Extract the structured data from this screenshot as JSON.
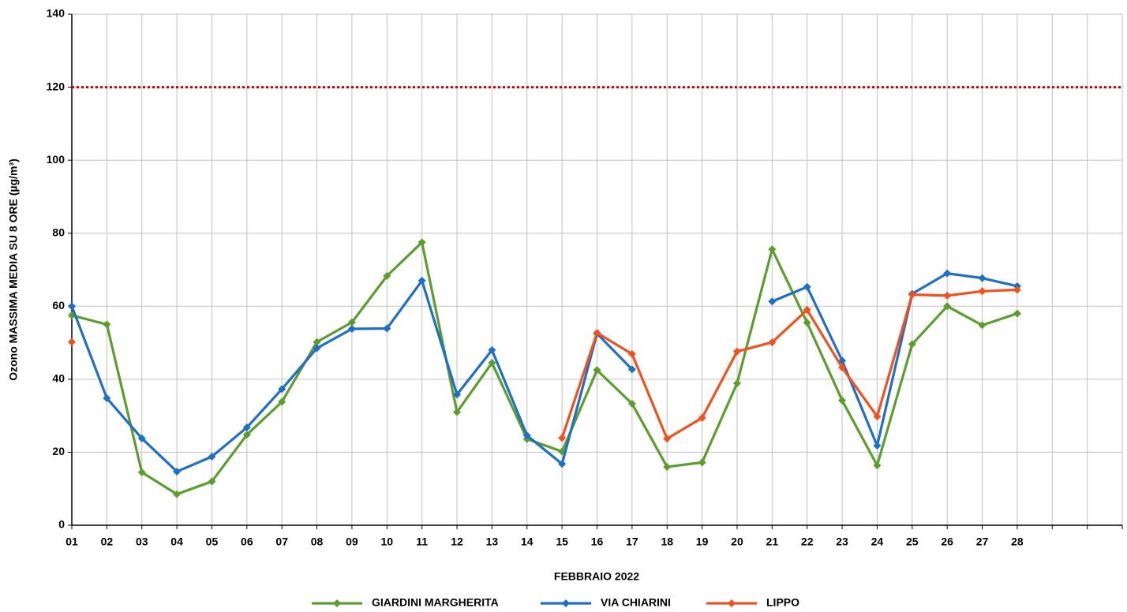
{
  "chart_data": {
    "type": "line",
    "y_label": "Ozono MASSIMA MEDIA SU 8 ORE (µg/m³)",
    "x_label": "FEBBRAIO 2022",
    "categories": [
      "01",
      "02",
      "03",
      "04",
      "05",
      "06",
      "07",
      "08",
      "09",
      "10",
      "11",
      "12",
      "13",
      "14",
      "15",
      "16",
      "17",
      "18",
      "19",
      "20",
      "21",
      "22",
      "23",
      "24",
      "25",
      "26",
      "27",
      "28",
      null,
      null,
      null
    ],
    "ylim": [
      0,
      140
    ],
    "yticks": [
      0,
      20,
      40,
      60,
      80,
      100,
      120,
      140
    ],
    "grid": true,
    "threshold": 120,
    "threshold_color": "#cc0000",
    "series": [
      {
        "name": "GIARDINI MARGHERITA",
        "color": "#5c9e2e",
        "values": [
          57.5,
          55,
          14.5,
          8.5,
          12,
          24.8,
          33.8,
          50.2,
          55.6,
          68.3,
          77.5,
          31,
          44.5,
          23.6,
          20.2,
          42.5,
          33.3,
          16,
          17.2,
          38.9,
          75.6,
          55.5,
          34.2,
          16.4,
          49.6,
          60,
          54.8,
          58,
          null,
          null,
          null
        ]
      },
      {
        "name": "VIA CHIARINI",
        "color": "#1f6fc4",
        "values": [
          60,
          34.8,
          23.8,
          14.7,
          18.8,
          26.8,
          37.3,
          48.5,
          53.8,
          53.9,
          67,
          35.8,
          48,
          24.6,
          16.8,
          52.5,
          42.7,
          null,
          null,
          null,
          61.3,
          65.3,
          45.1,
          21.8,
          63.4,
          69,
          67.7,
          65.5,
          null,
          null,
          null
        ]
      },
      {
        "name": "LIPPO",
        "color": "#f2501e",
        "values": [
          50.2,
          null,
          null,
          null,
          null,
          null,
          null,
          null,
          null,
          null,
          null,
          null,
          null,
          null,
          23.9,
          52.7,
          46.9,
          23.7,
          29.4,
          47.6,
          50.1,
          59,
          43.2,
          29.8,
          63.2,
          62.9,
          64.1,
          64.5,
          null,
          null,
          null
        ]
      }
    ]
  }
}
